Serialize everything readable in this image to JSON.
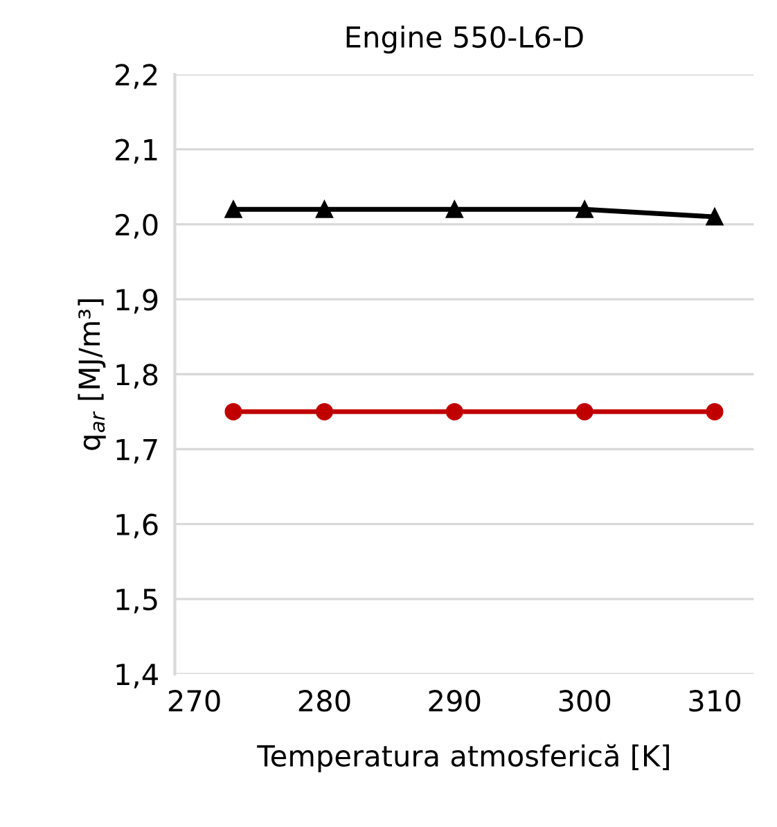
{
  "chart_data": {
    "type": "line",
    "title": "Engine 550-L6-D",
    "xlabel": "Temperatura atmosferică [K]",
    "ylabel": "q$_{ar}$ [MJ/m³]",
    "x": [
      273,
      280,
      290,
      300,
      310
    ],
    "series": [
      {
        "color": "#000000",
        "marker": "triangle",
        "values": [
          2.02,
          2.02,
          2.02,
          2.02,
          2.01
        ]
      },
      {
        "color": "#c00000",
        "marker": "circle",
        "values": [
          1.75,
          1.75,
          1.75,
          1.75,
          1.75
        ]
      }
    ],
    "xlim": [
      268.5,
      313
    ],
    "xticks": [
      270,
      280,
      290,
      300,
      310
    ],
    "ylim": [
      1.4,
      2.2
    ],
    "yticks": [
      {
        "value": 1.4,
        "label": "1,4"
      },
      {
        "value": 1.5,
        "label": "1,5"
      },
      {
        "value": 1.6,
        "label": "1,6"
      },
      {
        "value": 1.7,
        "label": "1,7"
      },
      {
        "value": 1.8,
        "label": "1,8"
      },
      {
        "value": 1.9,
        "label": "1,9"
      },
      {
        "value": 2.0,
        "label": "2,0"
      },
      {
        "value": 2.1,
        "label": "2,1"
      },
      {
        "value": 2.2,
        "label": "2,2"
      }
    ],
    "grid": "y",
    "line_style": "solid"
  }
}
